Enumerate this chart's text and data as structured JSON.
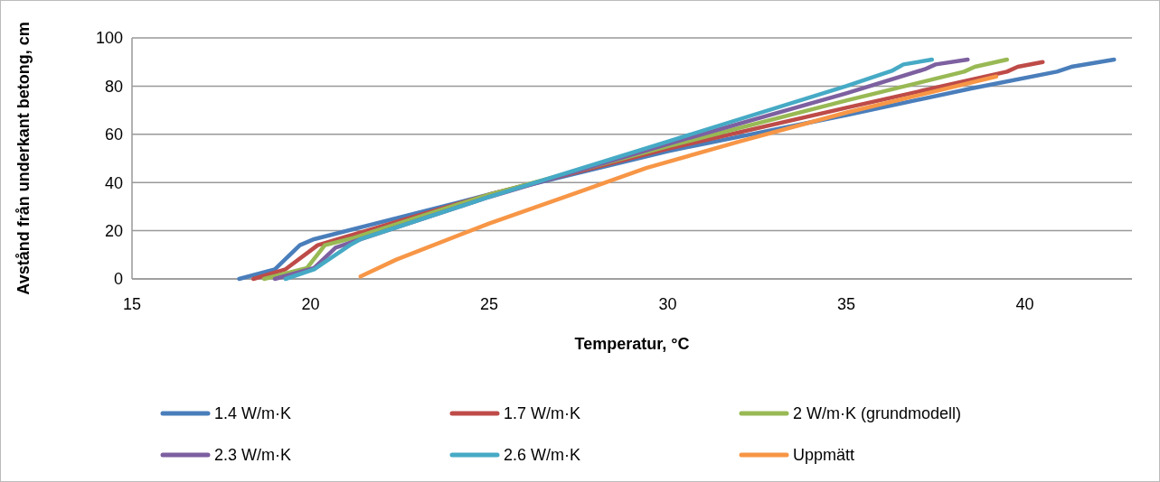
{
  "chart_data": {
    "type": "line",
    "xlabel": "Temperatur, °C",
    "ylabel": "Avstånd från underkant betong, cm",
    "xlim": [
      15,
      43
    ],
    "xticks": [
      15,
      20,
      25,
      30,
      35,
      40
    ],
    "ylim": [
      0,
      100
    ],
    "yticks": [
      0,
      20,
      40,
      60,
      80,
      100
    ],
    "grid": "y",
    "legend": "bottom",
    "line_style": "solid",
    "marker": "none",
    "series": [
      {
        "name": "1.4 W/m·K",
        "color": "#4a7ebb",
        "x": [
          18.0,
          19.0,
          19.7,
          20.1,
          25,
          30,
          35,
          38.5,
          40.9,
          41.3,
          42.5
        ],
        "values": [
          0,
          4,
          14,
          16.5,
          35,
          53,
          68,
          79,
          86,
          88,
          91
        ]
      },
      {
        "name": "1.7 W/m·K",
        "color": "#be4b48",
        "x": [
          18.4,
          19.3,
          20.2,
          21,
          25,
          30,
          35,
          39.5,
          39.8,
          40.5
        ],
        "values": [
          0,
          4,
          14,
          17.5,
          35,
          54,
          71,
          86,
          88,
          90
        ]
      },
      {
        "name": "2 W/m·K (grundmodell)",
        "color": "#98b954",
        "x": [
          18.7,
          19.9,
          20.4,
          21.2,
          25,
          30,
          35,
          38.3,
          38.6,
          39.5
        ],
        "values": [
          0,
          4.5,
          14,
          17,
          35,
          55,
          74,
          86,
          88,
          91
        ]
      },
      {
        "name": "2.3 W/m·K",
        "color": "#7d60a0",
        "x": [
          19.0,
          20.1,
          20.7,
          21.3,
          25,
          30,
          35,
          37.2,
          37.5,
          38.4
        ],
        "values": [
          0,
          4.5,
          13,
          16,
          34,
          56,
          77,
          87,
          89,
          91
        ]
      },
      {
        "name": "2.6 W/m·K",
        "color": "#46aac5",
        "x": [
          19.3,
          20.1,
          21.1,
          21.4,
          25,
          30,
          35,
          36.3,
          36.6,
          37.4
        ],
        "values": [
          0,
          4,
          14,
          16.5,
          34,
          57,
          80,
          86.5,
          89,
          91
        ]
      },
      {
        "name": "Uppmätt",
        "color": "#f79646",
        "x": [
          21.4,
          22.4,
          25,
          27.5,
          29.4,
          32,
          35,
          39.2
        ],
        "values": [
          1,
          8,
          23,
          36,
          46,
          57,
          69,
          84
        ]
      }
    ]
  }
}
